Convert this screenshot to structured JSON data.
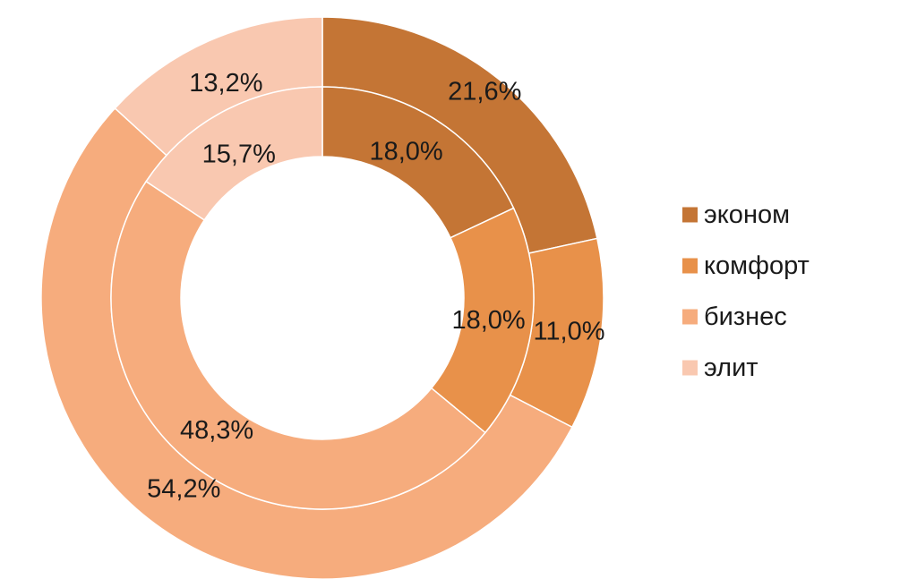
{
  "chart_data": {
    "type": "pie",
    "subtype": "doughnut",
    "title": "",
    "categories": [
      "эконом",
      "комфорт",
      "бизнес",
      "элит"
    ],
    "colors": [
      "#C47535",
      "#E8914A",
      "#F6AC7D",
      "#F9C8B0"
    ],
    "legend_position": "right",
    "series": [
      {
        "ring": "outer",
        "values": [
          21.6,
          11.0,
          54.2,
          13.2
        ],
        "labels": [
          "21,6%",
          "11,0%",
          "54,2%",
          "13,2%"
        ]
      },
      {
        "ring": "inner",
        "values": [
          18.0,
          18.0,
          48.3,
          15.7
        ],
        "labels": [
          "18,0%",
          "18,0%",
          "48,3%",
          "15,7%"
        ]
      }
    ]
  }
}
